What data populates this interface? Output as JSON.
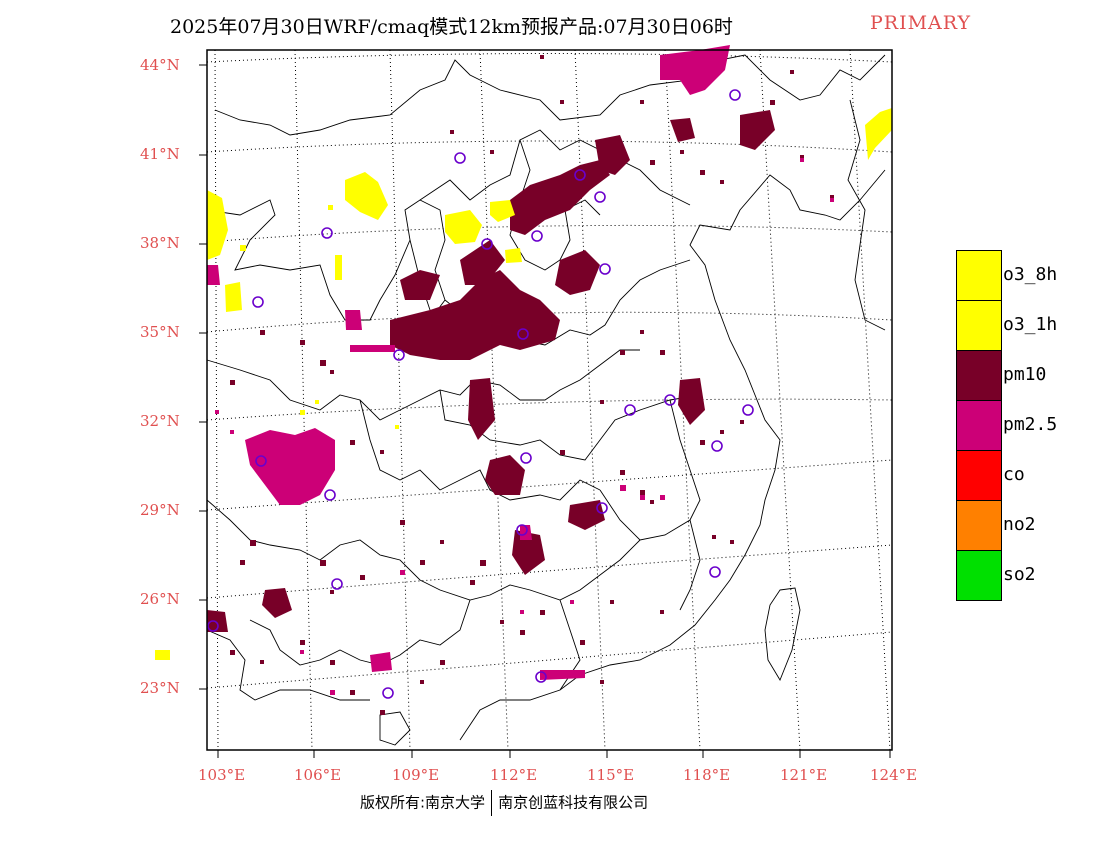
{
  "title": {
    "main": "2025年07月30日WRF/cmaq模式12km预报产品:07月30日06时",
    "tag": "PRIMARY"
  },
  "axes": {
    "lat_labels": [
      "44°N",
      "41°N",
      "38°N",
      "35°N",
      "32°N",
      "29°N",
      "26°N",
      "23°N"
    ],
    "lon_labels": [
      "103°E",
      "106°E",
      "109°E",
      "112°E",
      "115°E",
      "118°E",
      "121°E",
      "124°E"
    ]
  },
  "legend": [
    {
      "label": "o3_8h",
      "color": "#ffff00"
    },
    {
      "label": "o3_1h",
      "color": "#ffff00"
    },
    {
      "label": "pm10",
      "color": "#780028"
    },
    {
      "label": "pm2.5",
      "color": "#cc0077"
    },
    {
      "label": "co",
      "color": "#ff0000"
    },
    {
      "label": "no2",
      "color": "#ff8000"
    },
    {
      "label": "so2",
      "color": "#00e000"
    }
  ],
  "footer": {
    "left": "版权所有:南京大学",
    "right": "南京创蓝科技有限公司"
  }
}
